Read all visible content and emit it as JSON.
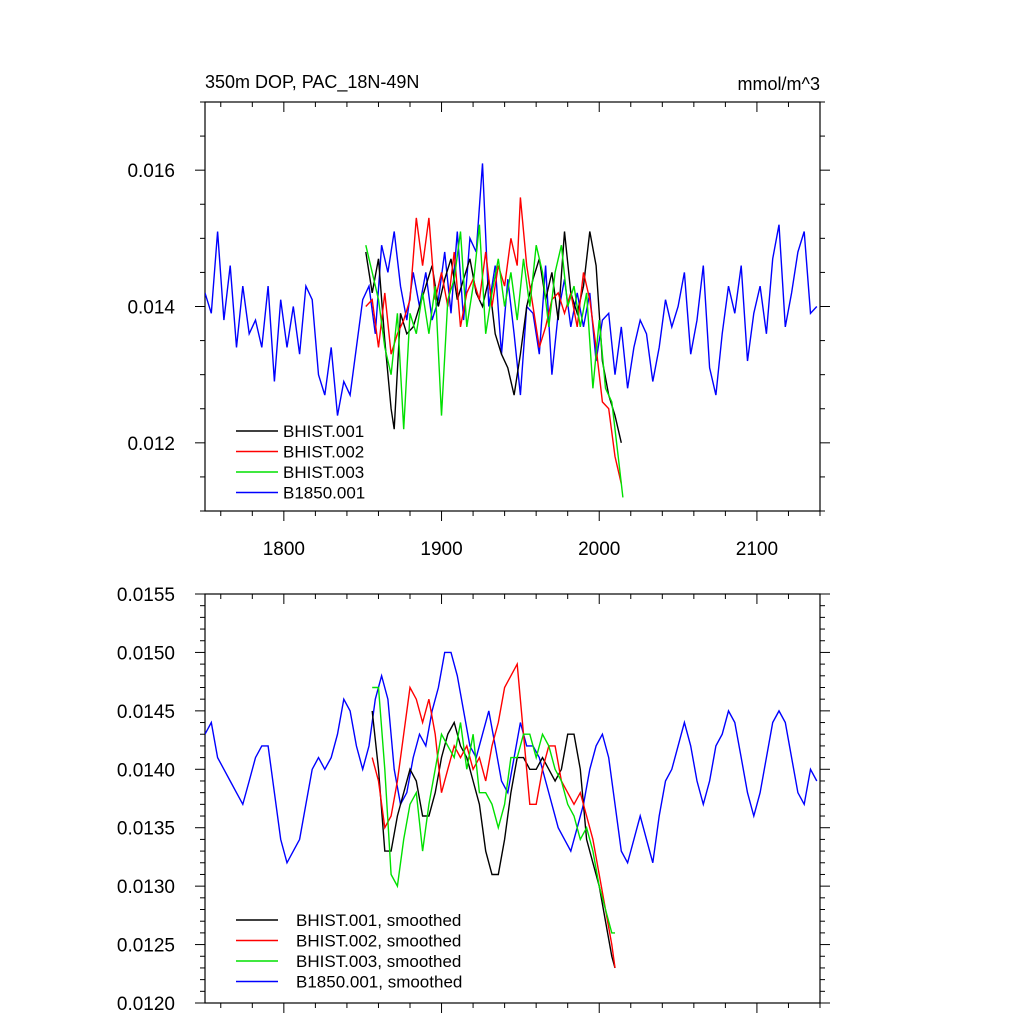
{
  "chart_data": [
    {
      "type": "line",
      "title": "350m DOP, PAC_18N-49N",
      "units_label": "mmol/m^3",
      "xlim": [
        1750,
        2140
      ],
      "ylim": [
        0.011,
        0.017
      ],
      "x_ticks": [
        1800,
        1900,
        2000,
        2100
      ],
      "x_tick_labels": [
        "1800",
        "1900",
        "2000",
        "2100"
      ],
      "y_ticks": [
        0.012,
        0.014,
        0.016
      ],
      "y_tick_labels": [
        "0.012",
        "0.014",
        "0.016"
      ],
      "legend_position": "bottom-left",
      "series": [
        {
          "name": "BHIST.001",
          "color": "#000000",
          "x": [
            1852,
            1856,
            1860,
            1864,
            1868,
            1870,
            1874,
            1878,
            1882,
            1886,
            1890,
            1894,
            1898,
            1902,
            1906,
            1910,
            1914,
            1918,
            1922,
            1926,
            1930,
            1934,
            1938,
            1942,
            1946,
            1950,
            1954,
            1958,
            1962,
            1966,
            1970,
            1974,
            1978,
            1982,
            1986,
            1990,
            1994,
            1998,
            2002,
            2006,
            2010,
            2014
          ],
          "y": [
            0.0148,
            0.0142,
            0.0147,
            0.0135,
            0.0125,
            0.0122,
            0.0139,
            0.0136,
            0.0137,
            0.014,
            0.0143,
            0.0146,
            0.014,
            0.0144,
            0.0147,
            0.0141,
            0.0144,
            0.0147,
            0.0142,
            0.014,
            0.0144,
            0.0136,
            0.0133,
            0.0131,
            0.0127,
            0.0133,
            0.014,
            0.0144,
            0.0147,
            0.0141,
            0.0145,
            0.0138,
            0.0151,
            0.0142,
            0.0139,
            0.0143,
            0.0151,
            0.0146,
            0.0132,
            0.0127,
            0.0124,
            0.012
          ]
        },
        {
          "name": "BHIST.002",
          "color": "#ff0000",
          "x": [
            1852,
            1856,
            1860,
            1864,
            1868,
            1872,
            1876,
            1880,
            1884,
            1888,
            1892,
            1896,
            1900,
            1904,
            1908,
            1912,
            1916,
            1920,
            1924,
            1928,
            1932,
            1936,
            1940,
            1944,
            1948,
            1950,
            1954,
            1958,
            1962,
            1966,
            1970,
            1974,
            1978,
            1982,
            1986,
            1990,
            1994,
            1998,
            2002,
            2006,
            2010,
            2014
          ],
          "y": [
            0.014,
            0.0141,
            0.0134,
            0.0142,
            0.0133,
            0.0136,
            0.0138,
            0.0141,
            0.0153,
            0.0146,
            0.0153,
            0.0141,
            0.0145,
            0.014,
            0.0148,
            0.0137,
            0.0142,
            0.0144,
            0.0141,
            0.0148,
            0.014,
            0.0146,
            0.0143,
            0.015,
            0.0146,
            0.0156,
            0.0146,
            0.014,
            0.0134,
            0.0137,
            0.0141,
            0.0142,
            0.0139,
            0.0142,
            0.0137,
            0.0145,
            0.0141,
            0.0134,
            0.0126,
            0.0125,
            0.0118,
            0.0114
          ]
        },
        {
          "name": "BHIST.003",
          "color": "#00e000",
          "x": [
            1852,
            1856,
            1860,
            1864,
            1868,
            1872,
            1876,
            1880,
            1884,
            1888,
            1892,
            1896,
            1900,
            1904,
            1908,
            1912,
            1916,
            1920,
            1924,
            1928,
            1932,
            1936,
            1940,
            1944,
            1948,
            1952,
            1956,
            1960,
            1964,
            1968,
            1972,
            1976,
            1980,
            1984,
            1988,
            1992,
            1996,
            2000,
            2004,
            2008,
            2012,
            2015
          ],
          "y": [
            0.0149,
            0.0145,
            0.0141,
            0.0134,
            0.013,
            0.0139,
            0.0122,
            0.0139,
            0.0136,
            0.0142,
            0.0136,
            0.0143,
            0.0124,
            0.0141,
            0.0144,
            0.0151,
            0.0137,
            0.0143,
            0.0152,
            0.0136,
            0.0142,
            0.0147,
            0.014,
            0.0145,
            0.0138,
            0.0147,
            0.014,
            0.0149,
            0.0145,
            0.0137,
            0.0145,
            0.0149,
            0.014,
            0.0143,
            0.0137,
            0.0142,
            0.0128,
            0.0138,
            0.0128,
            0.0126,
            0.0118,
            0.0112
          ]
        },
        {
          "name": "B1850.001",
          "color": "#0000ff",
          "x": [
            1750,
            1754,
            1758,
            1762,
            1766,
            1770,
            1774,
            1778,
            1782,
            1786,
            1790,
            1794,
            1798,
            1802,
            1806,
            1810,
            1814,
            1818,
            1822,
            1826,
            1830,
            1834,
            1838,
            1842,
            1846,
            1850,
            1854,
            1858,
            1862,
            1866,
            1870,
            1874,
            1878,
            1882,
            1886,
            1890,
            1894,
            1898,
            1902,
            1906,
            1910,
            1914,
            1918,
            1922,
            1926,
            1930,
            1934,
            1938,
            1942,
            1946,
            1950,
            1954,
            1958,
            1962,
            1966,
            1970,
            1974,
            1978,
            1982,
            1986,
            1990,
            1994,
            1998,
            2002,
            2006,
            2010,
            2014,
            2018,
            2022,
            2026,
            2030,
            2034,
            2038,
            2042,
            2046,
            2050,
            2054,
            2058,
            2062,
            2066,
            2070,
            2074,
            2078,
            2082,
            2086,
            2090,
            2094,
            2098,
            2102,
            2106,
            2110,
            2114,
            2118,
            2122,
            2126,
            2130,
            2134,
            2138
          ],
          "y": [
            0.0142,
            0.0139,
            0.0151,
            0.0138,
            0.0146,
            0.0134,
            0.0143,
            0.0136,
            0.0138,
            0.0134,
            0.0143,
            0.0129,
            0.0141,
            0.0134,
            0.014,
            0.0133,
            0.0143,
            0.0141,
            0.013,
            0.0127,
            0.0134,
            0.0124,
            0.0129,
            0.0127,
            0.0134,
            0.0141,
            0.0143,
            0.0136,
            0.0149,
            0.0145,
            0.0151,
            0.0143,
            0.0138,
            0.0145,
            0.014,
            0.0145,
            0.0138,
            0.0141,
            0.0148,
            0.0139,
            0.0151,
            0.0138,
            0.015,
            0.0148,
            0.0161,
            0.014,
            0.0146,
            0.0133,
            0.0144,
            0.0136,
            0.0127,
            0.014,
            0.0139,
            0.0133,
            0.0146,
            0.013,
            0.0139,
            0.0144,
            0.0137,
            0.0142,
            0.0137,
            0.0142,
            0.0132,
            0.0138,
            0.0139,
            0.013,
            0.0137,
            0.0128,
            0.0134,
            0.0138,
            0.0136,
            0.0129,
            0.0134,
            0.0141,
            0.0137,
            0.014,
            0.0145,
            0.0133,
            0.0138,
            0.0146,
            0.0131,
            0.0127,
            0.0136,
            0.0143,
            0.0139,
            0.0146,
            0.0132,
            0.0139,
            0.0143,
            0.0136,
            0.0147,
            0.0152,
            0.0137,
            0.0142,
            0.0148,
            0.0151,
            0.0139,
            0.014
          ]
        }
      ]
    },
    {
      "type": "line",
      "xlim": [
        1750,
        2140
      ],
      "ylim": [
        0.012,
        0.0155
      ],
      "x_ticks": [
        1800,
        1900,
        2000,
        2100
      ],
      "y_ticks": [
        0.012,
        0.0125,
        0.013,
        0.0135,
        0.014,
        0.0145,
        0.015,
        0.0155
      ],
      "y_tick_labels": [
        "0.0120",
        "0.0125",
        "0.0130",
        "0.0135",
        "0.0140",
        "0.0145",
        "0.0150",
        "0.0155"
      ],
      "legend_position": "bottom-left",
      "series": [
        {
          "name": "BHIST.001, smoothed",
          "color": "#000000",
          "x": [
            1856,
            1860,
            1864,
            1868,
            1872,
            1876,
            1880,
            1884,
            1888,
            1892,
            1896,
            1900,
            1904,
            1908,
            1912,
            1916,
            1920,
            1924,
            1928,
            1932,
            1936,
            1940,
            1944,
            1948,
            1952,
            1956,
            1960,
            1964,
            1968,
            1972,
            1976,
            1980,
            1984,
            1988,
            1992,
            1996,
            2000,
            2004,
            2008,
            2010
          ],
          "y": [
            0.0145,
            0.014,
            0.0133,
            0.0133,
            0.0136,
            0.0138,
            0.014,
            0.0139,
            0.0136,
            0.0136,
            0.0138,
            0.0141,
            0.0143,
            0.0144,
            0.0142,
            0.0141,
            0.0139,
            0.0137,
            0.0133,
            0.0131,
            0.0131,
            0.0134,
            0.0138,
            0.0141,
            0.0141,
            0.014,
            0.014,
            0.0141,
            0.014,
            0.0139,
            0.014,
            0.0143,
            0.0143,
            0.014,
            0.0134,
            0.0132,
            0.013,
            0.0127,
            0.0124,
            0.0123
          ]
        },
        {
          "name": "BHIST.002, smoothed",
          "color": "#ff0000",
          "x": [
            1856,
            1860,
            1864,
            1868,
            1872,
            1876,
            1880,
            1884,
            1888,
            1892,
            1896,
            1900,
            1904,
            1908,
            1912,
            1916,
            1920,
            1924,
            1928,
            1932,
            1936,
            1940,
            1944,
            1948,
            1952,
            1956,
            1960,
            1964,
            1968,
            1972,
            1976,
            1980,
            1984,
            1988,
            1992,
            1996,
            2000,
            2004,
            2008,
            2010
          ],
          "y": [
            0.0141,
            0.0139,
            0.0135,
            0.0136,
            0.0139,
            0.0143,
            0.0147,
            0.0146,
            0.0144,
            0.0146,
            0.0143,
            0.0138,
            0.014,
            0.0142,
            0.0141,
            0.0142,
            0.014,
            0.0141,
            0.0139,
            0.0142,
            0.0144,
            0.0147,
            0.0148,
            0.0149,
            0.0143,
            0.0137,
            0.0137,
            0.014,
            0.0142,
            0.0142,
            0.0139,
            0.0138,
            0.0137,
            0.0138,
            0.0136,
            0.0134,
            0.0131,
            0.0128,
            0.0125,
            0.0123
          ]
        },
        {
          "name": "BHIST.003, smoothed",
          "color": "#00e000",
          "x": [
            1856,
            1860,
            1864,
            1868,
            1872,
            1876,
            1880,
            1884,
            1888,
            1892,
            1896,
            1900,
            1904,
            1908,
            1912,
            1916,
            1920,
            1924,
            1928,
            1932,
            1936,
            1940,
            1944,
            1948,
            1952,
            1956,
            1960,
            1964,
            1968,
            1972,
            1976,
            1980,
            1984,
            1988,
            1992,
            1996,
            2000,
            2004,
            2008,
            2010
          ],
          "y": [
            0.0147,
            0.0147,
            0.014,
            0.0131,
            0.013,
            0.0134,
            0.0137,
            0.0138,
            0.0133,
            0.0137,
            0.014,
            0.0143,
            0.0142,
            0.0141,
            0.0144,
            0.014,
            0.0143,
            0.0138,
            0.0138,
            0.0137,
            0.0135,
            0.0137,
            0.0141,
            0.0141,
            0.0143,
            0.0143,
            0.0141,
            0.0143,
            0.0142,
            0.014,
            0.0139,
            0.0137,
            0.0136,
            0.0134,
            0.0135,
            0.0133,
            0.013,
            0.0128,
            0.0126,
            0.0126
          ]
        },
        {
          "name": "B1850.001, smoothed",
          "color": "#0000ff",
          "x": [
            1750,
            1754,
            1758,
            1762,
            1766,
            1770,
            1774,
            1778,
            1782,
            1786,
            1790,
            1794,
            1798,
            1802,
            1806,
            1810,
            1814,
            1818,
            1822,
            1826,
            1830,
            1834,
            1838,
            1842,
            1846,
            1850,
            1854,
            1858,
            1862,
            1866,
            1870,
            1874,
            1878,
            1882,
            1886,
            1890,
            1894,
            1898,
            1902,
            1906,
            1910,
            1914,
            1918,
            1922,
            1926,
            1930,
            1934,
            1938,
            1942,
            1946,
            1950,
            1954,
            1958,
            1962,
            1966,
            1970,
            1974,
            1978,
            1982,
            1986,
            1990,
            1994,
            1998,
            2002,
            2006,
            2010,
            2014,
            2018,
            2022,
            2026,
            2030,
            2034,
            2038,
            2042,
            2046,
            2050,
            2054,
            2058,
            2062,
            2066,
            2070,
            2074,
            2078,
            2082,
            2086,
            2090,
            2094,
            2098,
            2102,
            2106,
            2110,
            2114,
            2118,
            2122,
            2126,
            2130,
            2134,
            2138
          ],
          "y": [
            0.0143,
            0.0144,
            0.0141,
            0.014,
            0.0139,
            0.0138,
            0.0137,
            0.0139,
            0.0141,
            0.0142,
            0.0142,
            0.0138,
            0.0134,
            0.0132,
            0.0133,
            0.0134,
            0.0137,
            0.014,
            0.0141,
            0.014,
            0.0141,
            0.0143,
            0.0146,
            0.0145,
            0.0142,
            0.014,
            0.0142,
            0.0146,
            0.0148,
            0.0146,
            0.014,
            0.0137,
            0.0138,
            0.0141,
            0.0143,
            0.0142,
            0.0145,
            0.0147,
            0.015,
            0.015,
            0.0148,
            0.0145,
            0.0142,
            0.0141,
            0.0143,
            0.0145,
            0.0142,
            0.0139,
            0.0138,
            0.0141,
            0.0144,
            0.0142,
            0.0142,
            0.0141,
            0.0139,
            0.0137,
            0.0135,
            0.0134,
            0.0133,
            0.0135,
            0.0137,
            0.014,
            0.0142,
            0.0143,
            0.0141,
            0.0137,
            0.0133,
            0.0132,
            0.0134,
            0.0136,
            0.0134,
            0.0132,
            0.0136,
            0.0139,
            0.014,
            0.0142,
            0.0144,
            0.0142,
            0.0139,
            0.0137,
            0.0139,
            0.0142,
            0.0143,
            0.0145,
            0.0144,
            0.0141,
            0.0138,
            0.0136,
            0.0138,
            0.0141,
            0.0144,
            0.0145,
            0.0144,
            0.0141,
            0.0138,
            0.0137,
            0.014,
            0.0139
          ]
        }
      ]
    }
  ]
}
